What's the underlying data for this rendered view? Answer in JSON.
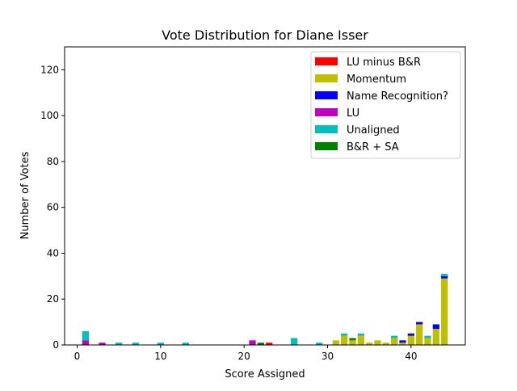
{
  "chart_data": {
    "type": "bar",
    "stacked": true,
    "title": "Vote Distribution for Diane Isser",
    "xlabel": "Score Assigned",
    "ylabel": "Number of Votes",
    "xlim": [
      -1.5,
      46.5
    ],
    "ylim": [
      0,
      130
    ],
    "xticks": [
      0,
      10,
      20,
      30,
      40
    ],
    "yticks": [
      0,
      20,
      40,
      60,
      80,
      100,
      120
    ],
    "grid": false,
    "legend_position": "top-right",
    "x": [
      1,
      3,
      5,
      7,
      10,
      13,
      21,
      22,
      23,
      26,
      29,
      31,
      32,
      33,
      34,
      35,
      36,
      37,
      38,
      39,
      40,
      41,
      42,
      43,
      44
    ],
    "series": [
      {
        "name": "LU minus B&R",
        "color": "#ff0000",
        "values": [
          0,
          0,
          0,
          0,
          0,
          0,
          0,
          0,
          1,
          0,
          0,
          0,
          0,
          0,
          0,
          0,
          0,
          0,
          0,
          0,
          0,
          0,
          0,
          0,
          0
        ]
      },
      {
        "name": "Momentum",
        "color": "#bfbf00",
        "values": [
          0,
          0,
          0,
          0,
          0,
          0,
          0,
          0,
          0,
          0,
          0,
          2,
          4,
          2,
          4,
          1,
          2,
          1,
          3,
          1,
          4,
          9,
          3,
          7,
          29
        ]
      },
      {
        "name": "Name Recognition?",
        "color": "#0000ff",
        "values": [
          0,
          0,
          0,
          0,
          0,
          0,
          0,
          0,
          0,
          0,
          0,
          0,
          0,
          0,
          0,
          0,
          0,
          0,
          0,
          1,
          1,
          1,
          0,
          2,
          1
        ]
      },
      {
        "name": "LU",
        "color": "#bf00bf",
        "values": [
          2,
          1,
          0,
          0,
          0,
          0,
          2,
          0,
          0,
          0,
          0,
          0,
          0,
          0,
          0,
          0,
          0,
          0,
          0,
          0,
          0,
          0,
          0,
          0,
          0
        ]
      },
      {
        "name": "Unaligned",
        "color": "#00bfbf",
        "values": [
          4,
          0,
          1,
          1,
          1,
          1,
          0,
          0,
          0,
          3,
          1,
          0,
          1,
          0,
          1,
          0,
          0,
          0,
          1,
          0,
          0,
          0,
          1,
          0,
          1
        ]
      },
      {
        "name": "B&R + SA",
        "color": "#008000",
        "values": [
          0,
          0,
          0,
          0,
          0,
          0,
          0,
          1,
          0,
          0,
          0,
          0,
          0,
          1,
          0,
          0,
          0,
          0,
          0,
          0,
          0,
          0,
          0,
          0,
          0
        ]
      }
    ]
  }
}
